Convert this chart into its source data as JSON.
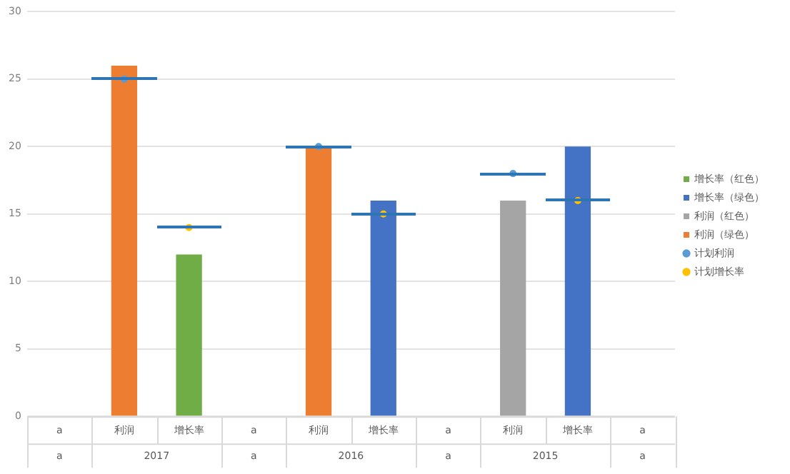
{
  "chart_data": {
    "type": "bar",
    "stacked": true,
    "categories": [
      "a",
      "利润",
      "增长率",
      "a",
      "利润",
      "增长率",
      "a",
      "利润",
      "增长率",
      "a"
    ],
    "series": [
      {
        "name": "增长率（红色）",
        "color": "#70ad47",
        "values": [
          null,
          null,
          12,
          null,
          null,
          null,
          null,
          null,
          null,
          null
        ]
      },
      {
        "name": "增长率（绿色）",
        "color": "#4472c4",
        "values": [
          null,
          null,
          null,
          null,
          null,
          16,
          null,
          null,
          20,
          null
        ]
      },
      {
        "name": "利润（红色）",
        "color": "#a5a5a5",
        "values": [
          null,
          null,
          null,
          null,
          null,
          null,
          null,
          16,
          null,
          null
        ]
      },
      {
        "name": "利润（绿色）",
        "color": "#ed7d31",
        "values": [
          null,
          26,
          null,
          null,
          20,
          null,
          null,
          null,
          null,
          null
        ]
      },
      {
        "name": "计划利润",
        "type": "scatter",
        "color": "#5b9bd5",
        "values": [
          null,
          25,
          null,
          null,
          20,
          null,
          null,
          18,
          null,
          null
        ]
      },
      {
        "name": "计划增长率",
        "type": "scatter",
        "color": "#ffc000",
        "values": [
          null,
          null,
          14,
          null,
          null,
          15,
          null,
          null,
          16,
          null
        ]
      }
    ],
    "annotations": [
      "a",
      "2017",
      "a",
      "2016",
      "a",
      "2015",
      "a"
    ],
    "ylim": [
      0,
      30
    ],
    "yticks": [
      0,
      5,
      10,
      15,
      20,
      25,
      30
    ],
    "grid": "y",
    "legend": "right",
    "marker": "circle"
  }
}
